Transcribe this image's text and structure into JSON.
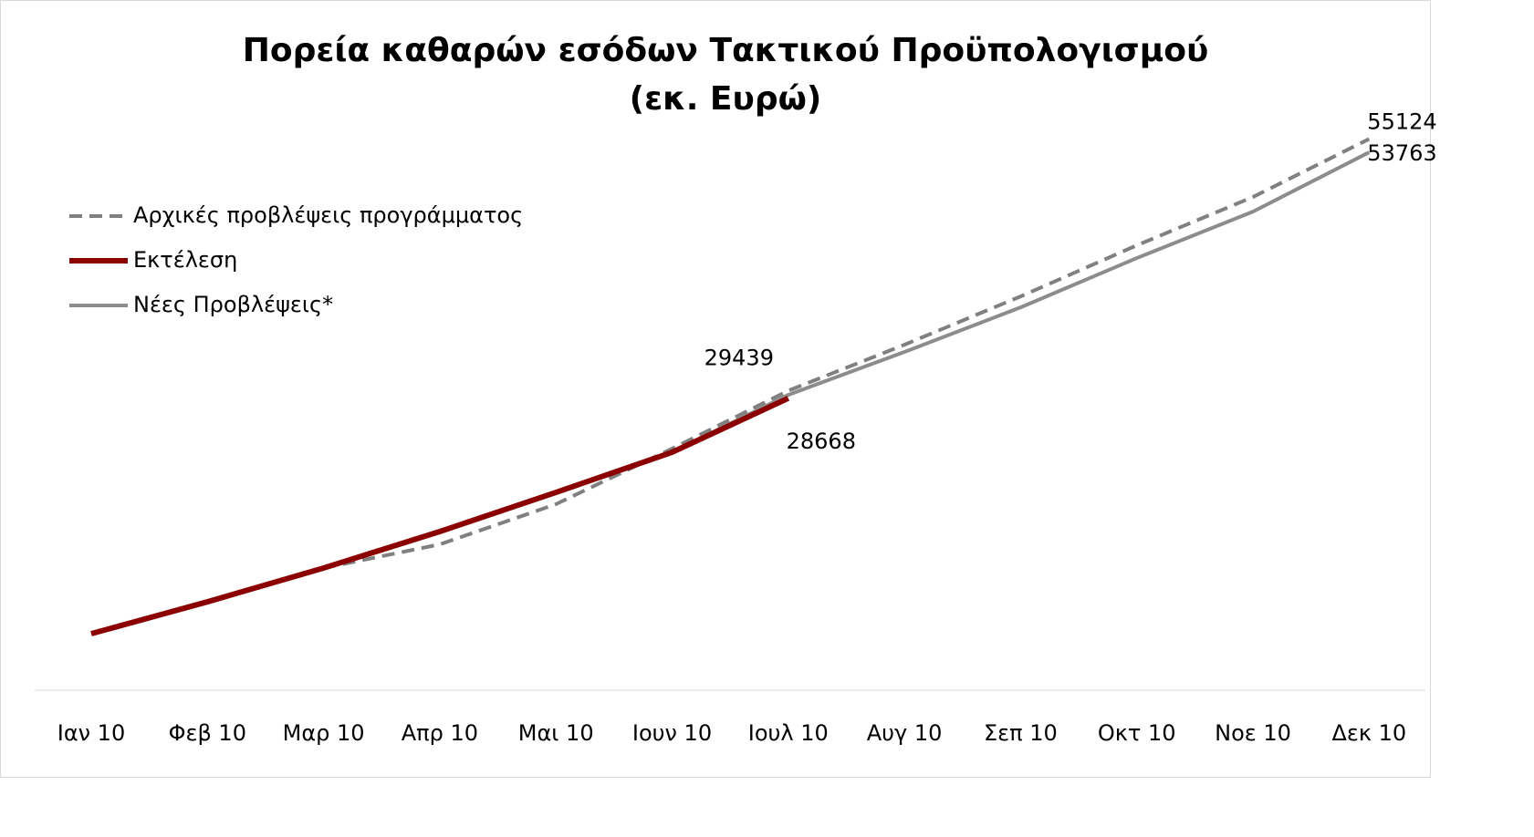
{
  "chart_data": {
    "type": "line",
    "title": "Πορεία καθαρών εσόδων Τακτικού Προϋπολογισμού",
    "subtitle": "(εκ. Ευρώ)",
    "categories": [
      "Ιαν 10",
      "Φεβ 10",
      "Μαρ 10",
      "Απρ 10",
      "Μαι 10",
      "Ιουν 10",
      "Ιουλ 10",
      "Αυγ 10",
      "Σεπ 10",
      "Οκτ 10",
      "Νοε 10",
      "Δεκ 10"
    ],
    "series": [
      {
        "name": "Αρχικές προβλέψεις προγράμματος",
        "color": "#808080",
        "dash": true,
        "values": [
          4650,
          7900,
          11350,
          13760,
          17860,
          23530,
          29439,
          34130,
          39060,
          44270,
          49200,
          55124
        ]
      },
      {
        "name": "Εκτέλεση",
        "color": "#8b0000",
        "values": [
          4650,
          7900,
          11350,
          15070,
          19065,
          23160,
          28668,
          null,
          null,
          null,
          null,
          null
        ]
      },
      {
        "name": "Νέες Προβλέψεις*",
        "color": "#8c8c8c",
        "values": [
          4650,
          7900,
          11350,
          15070,
          19065,
          23160,
          29016,
          33390,
          37940,
          42970,
          47710,
          53763
        ]
      }
    ],
    "ylim": [
      0,
      60000
    ]
  }
}
